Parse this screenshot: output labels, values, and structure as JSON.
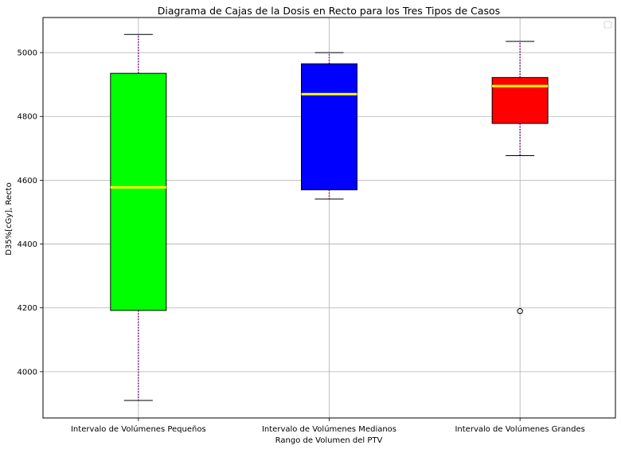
{
  "chart_data": {
    "type": "box",
    "title": "Diagrama de Cajas de la Dosis en Recto para los Tres Tipos de Casos",
    "xlabel": "Rango de Volumen del PTV",
    "ylabel": "D35%[cGy], Recto",
    "ylim": [
      3855,
      5110
    ],
    "yticks": [
      4000,
      4200,
      4400,
      4600,
      4800,
      5000
    ],
    "grid": true,
    "legend": {
      "placement": "top-right",
      "entries": []
    },
    "categories": [
      "Intervalo de Volúmenes Pequeños",
      "Intervalo de Volúmenes Medianos",
      "Intervalo de Volúmenes Grandes"
    ],
    "boxes": [
      {
        "category": "Intervalo de Volúmenes Pequeños",
        "whisker_low": 3910,
        "q1": 4192,
        "median": 4578,
        "q3": 4935,
        "whisker_high": 5057,
        "outliers": [],
        "fill": "#00ff00"
      },
      {
        "category": "Intervalo de Volúmenes Medianos",
        "whisker_low": 4541,
        "q1": 4570,
        "median": 4870,
        "q3": 4965,
        "whisker_high": 5000,
        "outliers": [],
        "fill": "#0000ff"
      },
      {
        "category": "Intervalo de Volúmenes Grandes",
        "whisker_low": 4677,
        "q1": 4778,
        "median": 4895,
        "q3": 4922,
        "whisker_high": 5035,
        "outliers": [
          4190
        ],
        "fill": "#ff0000"
      }
    ],
    "colors": {
      "median": "#ffff00",
      "whisker": "#800080",
      "cap": "#000000",
      "box_edge": "#000000",
      "grid": "#b0b0b0"
    }
  }
}
